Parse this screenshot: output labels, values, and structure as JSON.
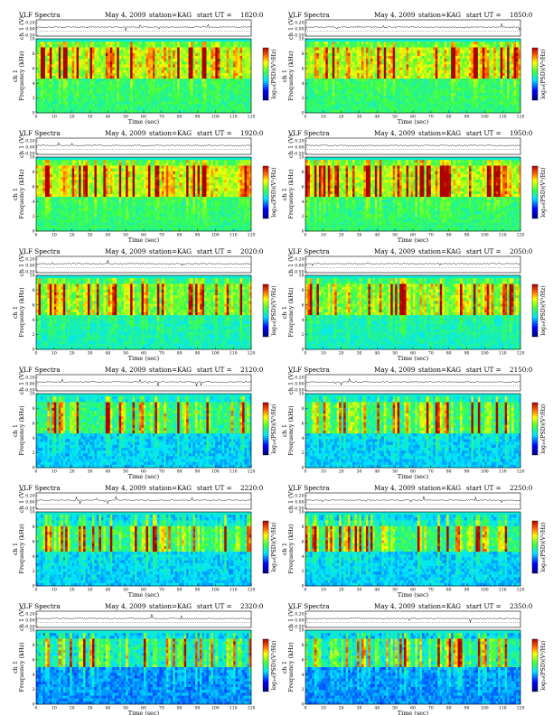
{
  "figure": {
    "header_title": "VLF Spectra",
    "header_date": "May 4, 2009",
    "header_station": "station=KAG",
    "header_start_prefix": "start  UT  =",
    "xlabel": "Time  (sec)",
    "ylabel_channel": "ch 1",
    "ylabel_freq": "Frequency  (kHz)",
    "amp_label": "ch 1 (V)",
    "colorbar_label": "log₁₀(PSD)(V²/Hz)"
  },
  "chart_data": [
    {
      "type": "heatmap",
      "panel": "r1c1",
      "start_ut": "1820:0",
      "title": "VLF Spectra",
      "date": "May 4, 2009",
      "station": "station=KAG",
      "xlabel": "Time (sec)",
      "ylabel": "Frequency (kHz)",
      "xlim": [
        0,
        120
      ],
      "ylim": [
        0,
        10
      ],
      "xticks": [
        0,
        10,
        20,
        30,
        40,
        50,
        60,
        70,
        80,
        90,
        100,
        110,
        120
      ],
      "yticks": [
        0,
        2,
        4,
        6,
        8,
        10
      ],
      "amp_yticks": [
        "0.20",
        "0.00",
        "-0.50"
      ],
      "colorbar_ticks": [
        "-",
        "-"
      ],
      "activity_band_khz": [
        4.5,
        9
      ],
      "background_level": "green"
    },
    {
      "type": "heatmap",
      "panel": "r1c2",
      "start_ut": "1850:0",
      "title": "VLF Spectra",
      "date": "May 4, 2009",
      "station": "station=KAG",
      "xlabel": "Time (sec)",
      "ylabel": "Frequency (kHz)",
      "xlim": [
        0,
        120
      ],
      "ylim": [
        0,
        10
      ],
      "xticks": [
        0,
        10,
        20,
        30,
        40,
        50,
        60,
        70,
        80,
        90,
        100,
        110,
        120
      ],
      "yticks": [
        0,
        2,
        4,
        6,
        8,
        10
      ],
      "amp_yticks": [
        "0.20",
        "0.00",
        "-0.50"
      ],
      "colorbar_ticks": [
        "-",
        "-"
      ],
      "activity_band_khz": [
        4.5,
        9
      ],
      "background_level": "green"
    },
    {
      "type": "heatmap",
      "panel": "r2c1",
      "start_ut": "1920:0",
      "title": "VLF Spectra",
      "date": "May 4, 2009",
      "station": "station=KAG",
      "xlabel": "Time (sec)",
      "ylabel": "Frequency (kHz)",
      "xlim": [
        0,
        120
      ],
      "ylim": [
        0,
        10
      ],
      "xticks": [
        0,
        10,
        20,
        30,
        40,
        50,
        60,
        70,
        80,
        90,
        100,
        110,
        120
      ],
      "yticks": [
        0,
        2,
        4,
        6,
        8,
        10
      ],
      "amp_yticks": [
        "0.20",
        "0.00",
        "-0.50"
      ],
      "colorbar_ticks": [
        "-",
        "-"
      ],
      "activity_band_khz": [
        4.5,
        9
      ],
      "background_level": "green"
    },
    {
      "type": "heatmap",
      "panel": "r2c2",
      "start_ut": "1950:0",
      "title": "VLF Spectra",
      "date": "May 4, 2009",
      "station": "station=KAG",
      "xlabel": "Time (sec)",
      "ylabel": "Frequency (kHz)",
      "xlim": [
        0,
        120
      ],
      "ylim": [
        0,
        10
      ],
      "xticks": [
        0,
        10,
        20,
        30,
        40,
        50,
        60,
        70,
        80,
        90,
        100,
        110,
        120
      ],
      "yticks": [
        0,
        2,
        4,
        6,
        8,
        10
      ],
      "amp_yticks": [
        "0.20",
        "0.00",
        "-0.50"
      ],
      "colorbar_ticks": [
        "-",
        "-"
      ],
      "activity_band_khz": [
        4.5,
        9
      ],
      "background_level": "green"
    },
    {
      "type": "heatmap",
      "panel": "r3c1",
      "start_ut": "2020:0",
      "title": "VLF Spectra",
      "date": "May 4, 2009",
      "station": "station=KAG",
      "xlabel": "Time (sec)",
      "ylabel": "Frequency (kHz)",
      "xlim": [
        0,
        120
      ],
      "ylim": [
        0,
        10
      ],
      "xticks": [
        0,
        10,
        20,
        30,
        40,
        50,
        60,
        70,
        80,
        90,
        100,
        110,
        120
      ],
      "yticks": [
        0,
        2,
        4,
        6,
        8,
        10
      ],
      "amp_yticks": [
        "0.20",
        "0.00",
        "-0.50"
      ],
      "colorbar_ticks": [
        "-",
        "-"
      ],
      "activity_band_khz": [
        4.5,
        9
      ],
      "background_level": "green-cyan"
    },
    {
      "type": "heatmap",
      "panel": "r3c2",
      "start_ut": "2050:0",
      "title": "VLF Spectra",
      "date": "May 4, 2009",
      "station": "station=KAG",
      "xlabel": "Time (sec)",
      "ylabel": "Frequency (kHz)",
      "xlim": [
        0,
        120
      ],
      "ylim": [
        0,
        10
      ],
      "xticks": [
        0,
        10,
        20,
        30,
        40,
        50,
        60,
        70,
        80,
        90,
        100,
        110,
        120
      ],
      "yticks": [
        0,
        2,
        4,
        6,
        8,
        10
      ],
      "amp_yticks": [
        "0.20",
        "0.00",
        "-0.50"
      ],
      "colorbar_ticks": [
        "-",
        "-"
      ],
      "activity_band_khz": [
        4.5,
        9
      ],
      "background_level": "green-cyan"
    },
    {
      "type": "heatmap",
      "panel": "r4c1",
      "start_ut": "2120:0",
      "title": "VLF Spectra",
      "date": "May 4, 2009",
      "station": "station=KAG",
      "xlabel": "Time (sec)",
      "ylabel": "Frequency (kHz)",
      "xlim": [
        0,
        120
      ],
      "ylim": [
        0,
        10
      ],
      "xticks": [
        0,
        10,
        20,
        30,
        40,
        50,
        60,
        70,
        80,
        90,
        100,
        110,
        120
      ],
      "yticks": [
        0,
        2,
        4,
        6,
        8,
        10
      ],
      "amp_yticks": [
        "0.20",
        "0.00",
        "-0.50"
      ],
      "colorbar_ticks": [
        "-",
        "-"
      ],
      "activity_band_khz": [
        4.5,
        9
      ],
      "background_level": "cyan-blue"
    },
    {
      "type": "heatmap",
      "panel": "r4c2",
      "start_ut": "2150:0",
      "title": "VLF Spectra",
      "date": "May 4, 2009",
      "station": "station=KAG",
      "xlabel": "Time (sec)",
      "ylabel": "Frequency (kHz)",
      "xlim": [
        0,
        120
      ],
      "ylim": [
        0,
        10
      ],
      "xticks": [
        0,
        10,
        20,
        30,
        40,
        50,
        60,
        70,
        80,
        90,
        100,
        110,
        120
      ],
      "yticks": [
        0,
        2,
        4,
        6,
        8,
        10
      ],
      "amp_yticks": [
        "0.20",
        "0.00",
        "-0.50"
      ],
      "colorbar_ticks": [
        "-",
        "-"
      ],
      "activity_band_khz": [
        4.5,
        9
      ],
      "background_level": "cyan-blue"
    },
    {
      "type": "heatmap",
      "panel": "r5c1",
      "start_ut": "2220:0",
      "title": "VLF Spectra",
      "date": "May 4, 2009",
      "station": "station=KAG",
      "xlabel": "Time (sec)",
      "ylabel": "Frequency (kHz)",
      "xlim": [
        0,
        120
      ],
      "ylim": [
        0,
        10
      ],
      "xticks": [
        0,
        10,
        20,
        30,
        40,
        50,
        60,
        70,
        80,
        90,
        100,
        110,
        120
      ],
      "yticks": [
        0,
        2,
        4,
        6,
        8,
        10
      ],
      "amp_yticks": [
        "0.20",
        "0.00",
        "-0.50"
      ],
      "colorbar_ticks": [
        "-",
        "-"
      ],
      "activity_band_khz": [
        4.5,
        8
      ],
      "background_level": "cyan-blue"
    },
    {
      "type": "heatmap",
      "panel": "r5c2",
      "start_ut": "2250:0",
      "title": "VLF Spectra",
      "date": "May 4, 2009",
      "station": "station=KAG",
      "xlabel": "Time (sec)",
      "ylabel": "Frequency (kHz)",
      "xlim": [
        0,
        120
      ],
      "ylim": [
        0,
        10
      ],
      "xticks": [
        0,
        10,
        20,
        30,
        40,
        50,
        60,
        70,
        80,
        90,
        100,
        110,
        120
      ],
      "yticks": [
        0,
        2,
        4,
        6,
        8,
        10
      ],
      "amp_yticks": [
        "0.20",
        "0.00",
        "-0.50"
      ],
      "colorbar_ticks": [
        "-",
        "-"
      ],
      "activity_band_khz": [
        4.5,
        8
      ],
      "background_level": "cyan-blue"
    },
    {
      "type": "heatmap",
      "panel": "r6c1",
      "start_ut": "2320:0",
      "title": "VLF Spectra",
      "date": "May 4, 2009",
      "station": "station=KAG",
      "xlabel": "Time (sec)",
      "ylabel": "Frequency (kHz)",
      "xlim": [
        0,
        120
      ],
      "ylim": [
        0,
        10
      ],
      "xticks": [
        0,
        10,
        20,
        30,
        40,
        50,
        60,
        70,
        80,
        90,
        100,
        110,
        120
      ],
      "yticks": [
        0,
        2,
        4,
        6,
        8,
        10
      ],
      "amp_yticks": [
        "0.20",
        "0.00",
        "-0.50"
      ],
      "colorbar_ticks": [
        "-",
        "-"
      ],
      "activity_band_khz": [
        5,
        9
      ],
      "background_level": "blue"
    },
    {
      "type": "heatmap",
      "panel": "r6c2",
      "start_ut": "2350:0",
      "title": "VLF Spectra",
      "date": "May 4, 2009",
      "station": "station=KAG",
      "xlabel": "Time (sec)",
      "ylabel": "Frequency (kHz)",
      "xlim": [
        0,
        120
      ],
      "ylim": [
        0,
        10
      ],
      "xticks": [
        0,
        10,
        20,
        30,
        40,
        50,
        60,
        70,
        80,
        90,
        100,
        110,
        120
      ],
      "yticks": [
        0,
        2,
        4,
        6,
        8,
        10
      ],
      "amp_yticks": [
        "0.20",
        "0.00",
        "-0.50"
      ],
      "colorbar_ticks": [
        "-",
        "-"
      ],
      "activity_band_khz": [
        5,
        9
      ],
      "background_level": "blue"
    }
  ]
}
